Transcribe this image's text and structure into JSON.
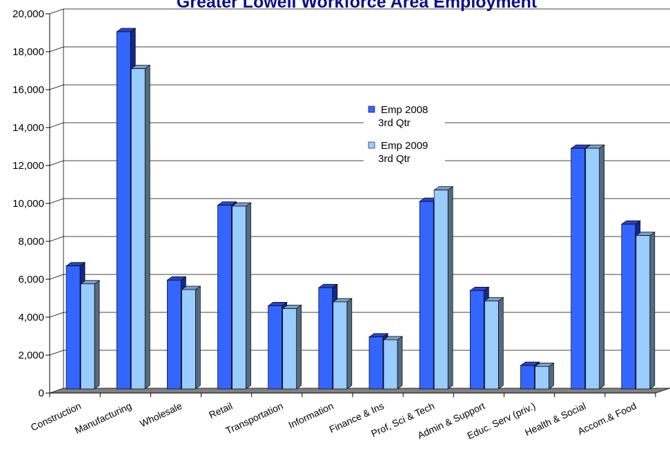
{
  "chart_data": {
    "type": "bar",
    "title": "Greater Lowell Workforce Area Employment",
    "xlabel": "",
    "ylabel": "",
    "ylim": [
      0,
      20000
    ],
    "yticks": [
      "0",
      "2,000",
      "4,000",
      "6,000",
      "8,000",
      "10,000",
      "12,000",
      "14,000",
      "16,000",
      "18,000",
      "20,000"
    ],
    "grid": true,
    "legend_position": "center-right",
    "categories": [
      "Construction",
      "Manufacturing",
      "Wholesale",
      "Retail",
      "Transportation",
      "Information",
      "Finance & Ins",
      "Prof, Sci & Tech",
      "Admin & Support",
      "Educ. Serv (priv.)",
      "Health & Social",
      "Accom.& Food"
    ],
    "series": [
      {
        "name_lines": [
          "Emp 2008",
          "3rd Qtr"
        ],
        "color": "#3366ff",
        "values": [
          6450,
          18800,
          5700,
          9650,
          4350,
          5300,
          2700,
          9850,
          5150,
          1200,
          12650,
          8650
        ]
      },
      {
        "name_lines": [
          "Emp 2009",
          "3rd Qtr"
        ],
        "color": "#99ccff",
        "values": [
          5500,
          16850,
          5200,
          9600,
          4200,
          4550,
          2550,
          10450,
          4600,
          1150,
          12650,
          8050
        ]
      }
    ],
    "colors": {
      "series1_side": "#14288c",
      "series1_top": "#2846c8",
      "series2_side": "#556b80",
      "series2_top": "#78a0c8",
      "floor": "#808080",
      "grid": "#000000"
    }
  }
}
